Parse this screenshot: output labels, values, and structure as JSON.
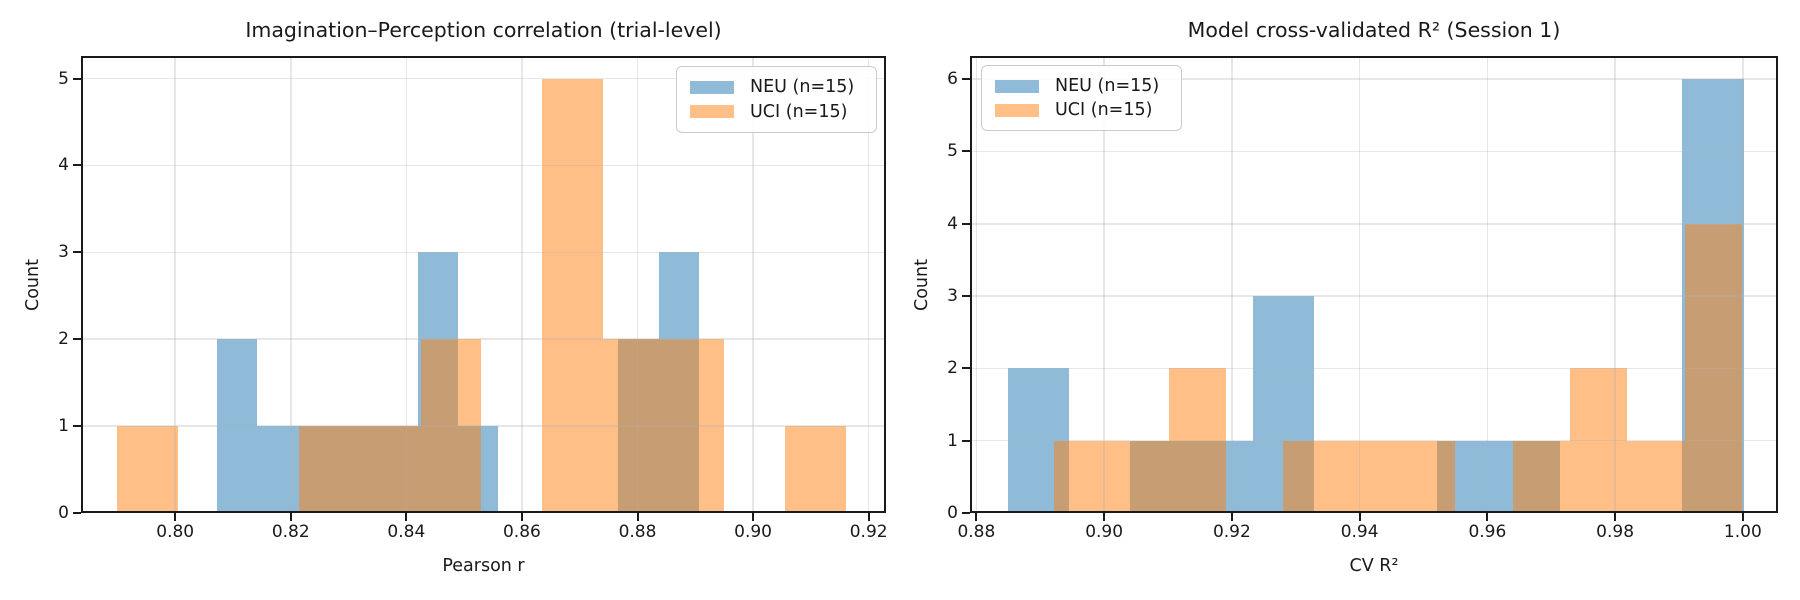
{
  "figure": {
    "background": "#ffffff",
    "text_color": "#1a1a1a",
    "spine_color": "#1a1a1a",
    "grid_color": "#b0b0b0",
    "grid_alpha": 0.3
  },
  "chart_data": [
    {
      "type": "histogram",
      "title": "Imagination–Perception correlation (trial-level)",
      "xlabel": "Pearson r",
      "ylabel": "Count",
      "xlim": [
        0.7837,
        0.923
      ],
      "ylim": [
        0,
        5.26
      ],
      "xticks": [
        0.8,
        0.82,
        0.84,
        0.86,
        0.88,
        0.9,
        0.92
      ],
      "xtick_labels": [
        "0.80",
        "0.82",
        "0.84",
        "0.86",
        "0.88",
        "0.90",
        "0.92"
      ],
      "yticks": [
        0,
        1,
        2,
        3,
        4,
        5
      ],
      "ytick_labels": [
        "0",
        "1",
        "2",
        "3",
        "4",
        "5"
      ],
      "grid": true,
      "legend_position": "top-right",
      "series": [
        {
          "name": "NEU (n=15)",
          "color": "#1f77b4",
          "alpha": 0.5,
          "bin_start": 0.8072,
          "bin_width": 0.00695,
          "counts": [
            2,
            1,
            1,
            1,
            1,
            3,
            1,
            0,
            0,
            0,
            2,
            3
          ]
        },
        {
          "name": "UCI (n=15)",
          "color": "#ff7f0e",
          "alpha": 0.5,
          "bin_start": 0.79,
          "bin_width": 0.0105,
          "counts": [
            1,
            0,
            0,
            1,
            1,
            2,
            0,
            5,
            2,
            2,
            0,
            1
          ]
        }
      ]
    },
    {
      "type": "histogram",
      "title": "Model cross-validated R² (Session 1)",
      "xlabel": "CV R²",
      "ylabel": "Count",
      "xlim": [
        0.879,
        1.0055
      ],
      "ylim": [
        0,
        6.32
      ],
      "xticks": [
        0.88,
        0.9,
        0.92,
        0.94,
        0.96,
        0.98,
        1.0
      ],
      "xtick_labels": [
        "0.88",
        "0.90",
        "0.92",
        "0.94",
        "0.96",
        "0.98",
        "1.00"
      ],
      "yticks": [
        0,
        1,
        2,
        3,
        4,
        5,
        6
      ],
      "ytick_labels": [
        "0",
        "1",
        "2",
        "3",
        "4",
        "5",
        "6"
      ],
      "grid": true,
      "legend_position": "top-left",
      "series": [
        {
          "name": "NEU (n=15)",
          "color": "#1f77b4",
          "alpha": 0.5,
          "bin_start": 0.8849,
          "bin_width": 0.0096,
          "counts": [
            2,
            0,
            1,
            1,
            3,
            0,
            0,
            1,
            1,
            0,
            0,
            6
          ]
        },
        {
          "name": "UCI (n=15)",
          "color": "#ff7f0e",
          "alpha": 0.5,
          "bin_start": 0.8922,
          "bin_width": 0.00897,
          "counts": [
            1,
            1,
            2,
            0,
            1,
            1,
            1,
            0,
            1,
            2,
            1,
            4
          ]
        }
      ]
    }
  ]
}
